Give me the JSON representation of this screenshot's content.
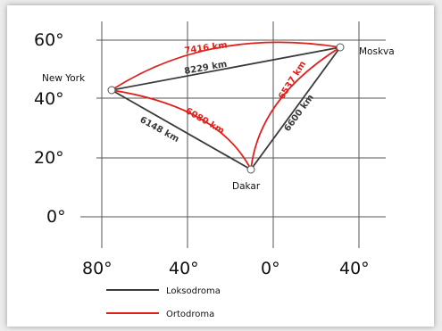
{
  "colors": {
    "loxodrome": "#3a3a3a",
    "orthodrome": "#e0201b",
    "grid": "#555555",
    "city_marker_fill": "#ffffff"
  },
  "axes": {
    "lat_ticks": [
      "60°",
      "40°",
      "20°",
      "0°"
    ],
    "lon_ticks": [
      "80°",
      "40°",
      "0°",
      "40°"
    ]
  },
  "cities": [
    {
      "name": "New York",
      "lon": -74,
      "lat": 42
    },
    {
      "name": "Moskva",
      "lon": 37,
      "lat": 57
    },
    {
      "name": "Dakar",
      "lon": -8,
      "lat": 16
    }
  ],
  "routes": {
    "loxodrome": [
      {
        "from": "New York",
        "to": "Moskva",
        "distance": "8229 km"
      },
      {
        "from": "New York",
        "to": "Dakar",
        "distance": "6148 km"
      },
      {
        "from": "Dakar",
        "to": "Moskva",
        "distance": "6600 km"
      }
    ],
    "orthodrome": [
      {
        "from": "New York",
        "to": "Moskva",
        "distance": "7416 km"
      },
      {
        "from": "New York",
        "to": "Dakar",
        "distance": "6080 km"
      },
      {
        "from": "Dakar",
        "to": "Moskva",
        "distance": "6537 km"
      }
    ]
  },
  "legend": {
    "loxodrome_label": "Loksodroma",
    "orthodrome_label": "Ortodroma"
  }
}
